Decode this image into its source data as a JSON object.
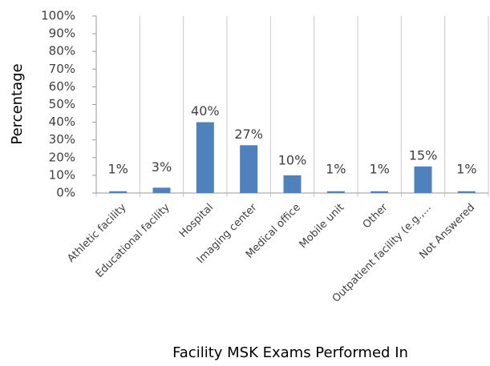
{
  "chart_data": {
    "type": "bar",
    "y_label": "Percentage",
    "x_label": "Facility MSK Exams Performed In",
    "categories": [
      "Athletic facility",
      "Educational facility",
      "Hospital",
      "Imaging center",
      "Medical office",
      "Mobile unit",
      "Other",
      "Outpatient facility (e.g.,...",
      "Not Answered"
    ],
    "values": [
      1,
      3,
      40,
      27,
      10,
      1,
      1,
      15,
      1
    ],
    "value_labels": [
      "1%",
      "3%",
      "40%",
      "27%",
      "10%",
      "1%",
      "1%",
      "15%",
      "1%"
    ],
    "color": "#4f81bd",
    "ylim": [
      0,
      100
    ],
    "yticks": [
      {
        "value": 0,
        "label": "0%"
      },
      {
        "value": 10,
        "label": "10%"
      },
      {
        "value": 20,
        "label": "20%"
      },
      {
        "value": 30,
        "label": "30%"
      },
      {
        "value": 40,
        "label": "40%"
      },
      {
        "value": 50,
        "label": "50%"
      },
      {
        "value": 60,
        "label": "60%"
      },
      {
        "value": 70,
        "label": "70%"
      },
      {
        "value": 80,
        "label": "80%"
      },
      {
        "value": 90,
        "label": "90%"
      },
      {
        "value": 100,
        "label": "100%"
      }
    ]
  }
}
